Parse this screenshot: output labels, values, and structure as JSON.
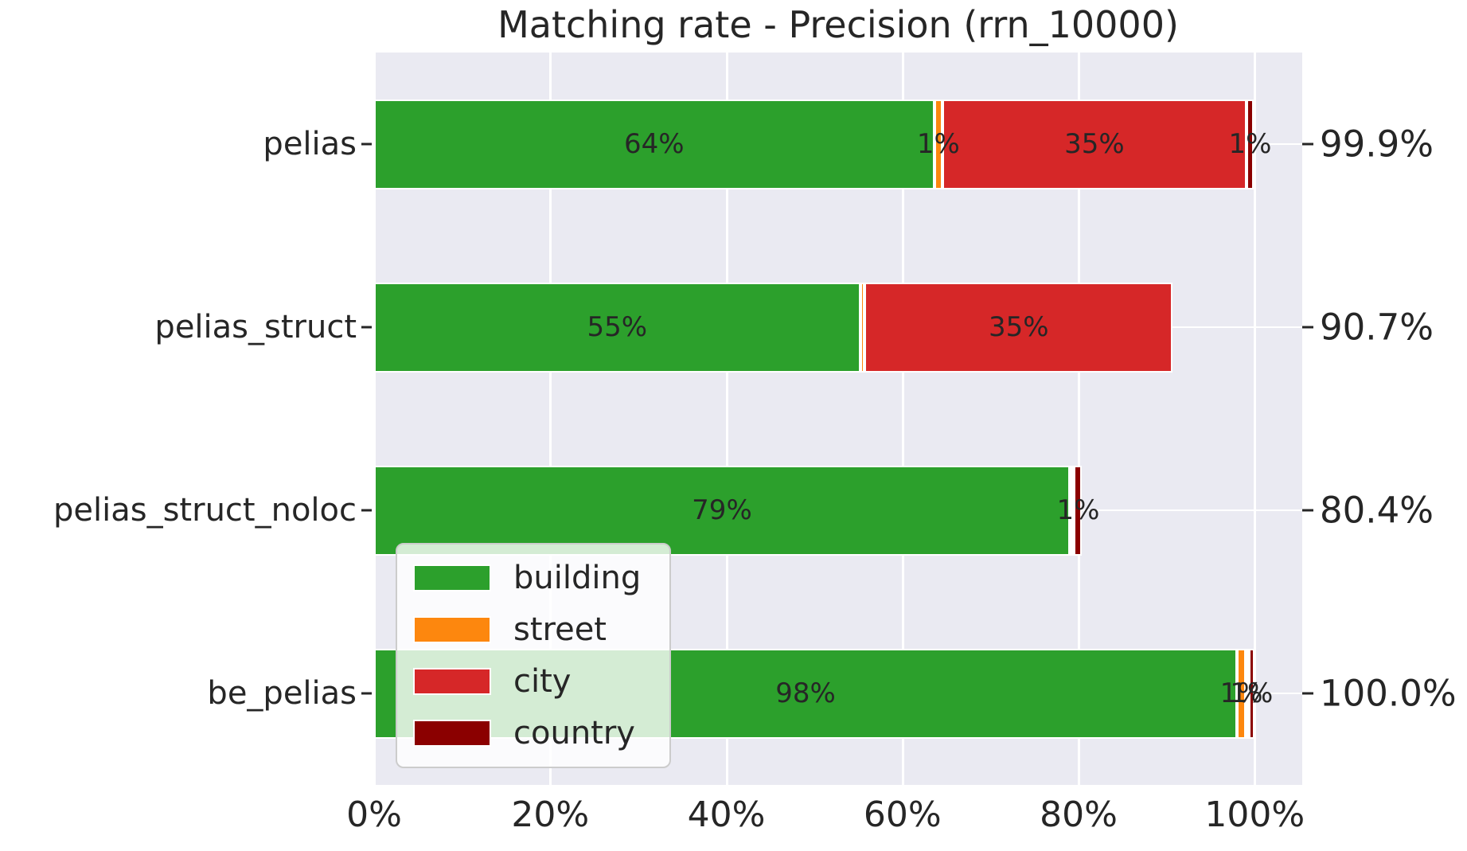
{
  "chart_data": {
    "type": "bar",
    "variant": "horizontal-stacked",
    "title": "Matching rate - Precision (rrn_10000)",
    "categories": [
      "pelias",
      "pelias_struct",
      "pelias_struct_noloc",
      "be_pelias"
    ],
    "series": [
      {
        "name": "building",
        "color": "#2ca02c",
        "values": [
          63.6,
          55.2,
          79.0,
          98.0
        ],
        "labels": [
          "64%",
          "55%",
          "79%",
          "98%"
        ]
      },
      {
        "name": "street",
        "color": "#fd870e",
        "values": [
          0.95,
          0.5,
          0.1,
          1.0
        ],
        "labels": [
          "1%",
          "",
          "",
          "1%"
        ]
      },
      {
        "name": "city",
        "color": "#d62728",
        "values": [
          34.5,
          35.0,
          0.4,
          0.3
        ],
        "labels": [
          "35%",
          "35%",
          "",
          ""
        ]
      },
      {
        "name": "country",
        "color": "#8b0000",
        "values": [
          0.85,
          0.0,
          0.9,
          0.7
        ],
        "labels": [
          "1%",
          "",
          "1%",
          "1%"
        ]
      }
    ],
    "totals": [
      "99.9%",
      "90.7%",
      "80.4%",
      "100.0%"
    ],
    "x_ticks": [
      {
        "value": 0,
        "label": "0%"
      },
      {
        "value": 20,
        "label": "20%"
      },
      {
        "value": 40,
        "label": "40%"
      },
      {
        "value": 60,
        "label": "60%"
      },
      {
        "value": 80,
        "label": "80%"
      },
      {
        "value": 100,
        "label": "100%"
      }
    ],
    "xlim": [
      0,
      105.4
    ],
    "grid": true,
    "legend": {
      "position": "lower-left",
      "entries": [
        "building",
        "street",
        "city",
        "country"
      ]
    },
    "colors": {
      "figure_bg": "#ffffff",
      "plot_bg": "#eaeaf2",
      "gridline": "#ffffff",
      "text": "#262626"
    }
  }
}
